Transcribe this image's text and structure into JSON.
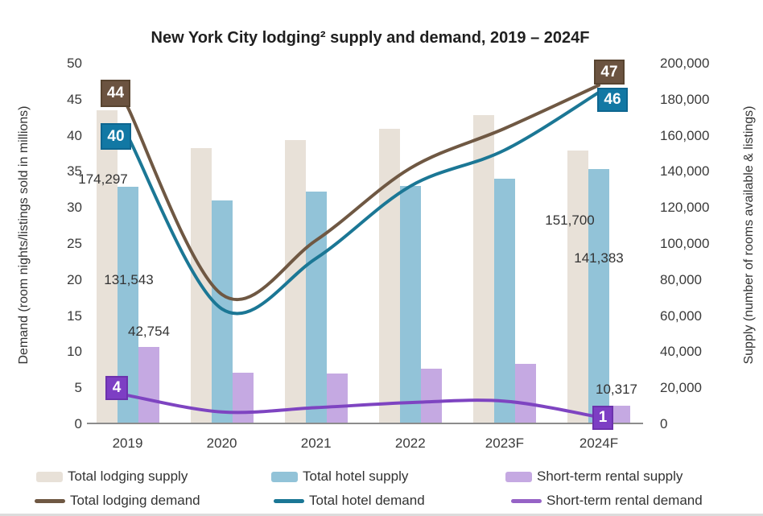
{
  "chart_data": {
    "type": "combo-bar-line",
    "title": "New York City lodging² supply and demand, 2019 – 2024F",
    "categories": [
      "2019",
      "2020",
      "2021",
      "2022",
      "2023F",
      "2024F"
    ],
    "left_axis": {
      "title": "Demand (room nights/listings sold in millions)",
      "range": [
        0,
        50
      ],
      "tick_values": [
        0,
        5,
        10,
        15,
        20,
        25,
        30,
        35,
        40,
        45,
        50
      ],
      "tick_labels": [
        "0",
        "5",
        "10",
        "15",
        "20",
        "25",
        "30",
        "35",
        "40",
        "45",
        "50"
      ]
    },
    "right_axis": {
      "title": "Supply (number of rooms available & listings)",
      "range": [
        0,
        200000
      ],
      "tick_values": [
        0,
        20000,
        40000,
        60000,
        80000,
        100000,
        120000,
        140000,
        160000,
        180000,
        200000
      ],
      "tick_labels": [
        "0",
        "20,000",
        "40,000",
        "60,000",
        "80,000",
        "100,000",
        "120,000",
        "140,000",
        "160,000",
        "180,000",
        "200,000"
      ]
    },
    "bar_series": [
      {
        "name": "Total lodging supply",
        "axis": "right",
        "color": "#e8e1d8",
        "values": [
          174297,
          153000,
          157500,
          164000,
          171500,
          151700
        ]
      },
      {
        "name": "Total hotel supply",
        "axis": "right",
        "color": "#92c3d8",
        "values": [
          131543,
          124000,
          129000,
          132000,
          136000,
          141383
        ]
      },
      {
        "name": "Short-term rental supply",
        "axis": "right",
        "color": "#c5a9e2",
        "values": [
          42754,
          28500,
          28000,
          31000,
          33500,
          10317
        ]
      }
    ],
    "line_series": [
      {
        "name": "Total lodging demand",
        "axis": "left",
        "color": "#6f5843",
        "values": [
          44,
          18,
          25.5,
          35.5,
          41,
          47
        ]
      },
      {
        "name": "Total hotel demand",
        "axis": "left",
        "color": "#1b7795",
        "values": [
          40,
          16,
          23,
          33,
          38,
          46
        ]
      },
      {
        "name": "Short-term rental demand",
        "axis": "left",
        "color": "#7e44c1",
        "values": [
          4,
          1.7,
          2.3,
          3,
          3.2,
          1
        ]
      }
    ],
    "callouts": [
      {
        "label": "44",
        "series": "Total lodging demand",
        "category": "2019",
        "color": "#6b5340",
        "border": "#584430"
      },
      {
        "label": "40",
        "series": "Total hotel demand",
        "category": "2019",
        "color": "#1278a4",
        "border": "#0e6690"
      },
      {
        "label": "4",
        "series": "Short-term rental demand",
        "category": "2019",
        "color": "#7d3ec4",
        "border": "#6c32ad"
      },
      {
        "label": "47",
        "series": "Total lodging demand",
        "category": "2024F",
        "color": "#6b5340",
        "border": "#584430"
      },
      {
        "label": "46",
        "series": "Total hotel demand",
        "category": "2024F",
        "color": "#1278a4",
        "border": "#0e6690"
      },
      {
        "label": "1",
        "series": "Short-term rental demand",
        "category": "2024F",
        "color": "#7d3ec4",
        "border": "#6c32ad"
      }
    ],
    "annotations": [
      {
        "text": "174,297",
        "series": "Total lodging supply",
        "category": "2019"
      },
      {
        "text": "131,543",
        "series": "Total hotel supply",
        "category": "2019"
      },
      {
        "text": "42,754",
        "series": "Short-term rental supply",
        "category": "2019"
      },
      {
        "text": "151,700",
        "series": "Total lodging supply",
        "category": "2024F"
      },
      {
        "text": "141,383",
        "series": "Total hotel supply",
        "category": "2024F"
      },
      {
        "text": "10,317",
        "series": "Short-term rental supply",
        "category": "2024F"
      }
    ],
    "legend": {
      "items": [
        {
          "label": "Total lodging supply",
          "type": "bar",
          "color": "#e8e1d8"
        },
        {
          "label": "Total hotel supply",
          "type": "bar",
          "color": "#92c3d8"
        },
        {
          "label": "Short-term rental supply",
          "type": "bar",
          "color": "#c5a9e2"
        },
        {
          "label": "Total lodging demand",
          "type": "line",
          "color": "#6f5843"
        },
        {
          "label": "Total hotel demand",
          "type": "line",
          "color": "#1b7795"
        },
        {
          "label": "Short-term rental demand",
          "type": "line",
          "color": "#9663c6"
        }
      ]
    },
    "layout_hints": {
      "grid": false,
      "legend_position": "bottom",
      "background": "#ffffff"
    }
  }
}
